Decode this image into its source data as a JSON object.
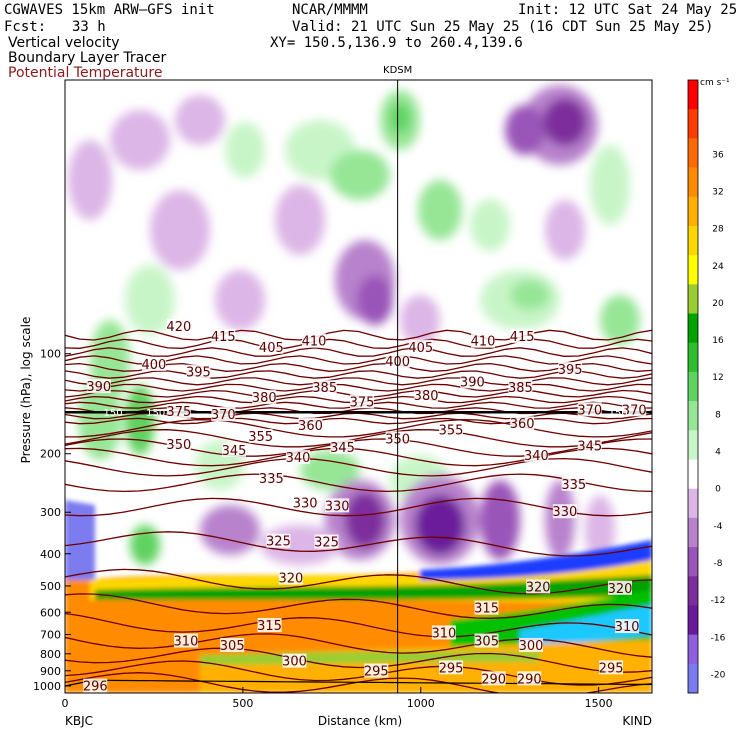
{
  "header": {
    "model": "CGWAVES 15km ARW—GFS init",
    "org": "NCAR/MMMM",
    "init": "Init: 12 UTC Sat 24 May 25",
    "fcst_label": "Fcst:",
    "fcst_value": "33 h",
    "valid": "Valid: 21 UTC Sun 25 May 25 (16 CDT Sun 25 May 25)",
    "field1": "Vertical velocity",
    "field2": "Boundary Layer Tracer",
    "field3": "Potential Temperature",
    "xy": "XY= 150.5,136.9 to 260.4,139.6"
  },
  "colors": {
    "theta": "#6e0000",
    "field3_text": "#8b1a1a"
  },
  "chart_data": {
    "type": "cross-section",
    "title": "",
    "xlabel": "Distance (km)",
    "ylabel": "Pressure (hPa), log scale",
    "x_range": [
      0,
      1650
    ],
    "y_range": [
      1050,
      15
    ],
    "y_scale": "log",
    "x_ticks": [
      {
        "value": 0,
        "label": "0"
      },
      {
        "value": 500,
        "label": "500"
      },
      {
        "value": 1000,
        "label": "1000"
      },
      {
        "value": 1500,
        "label": "1500"
      }
    ],
    "y_ticks": [
      {
        "value": 100,
        "label": "100"
      },
      {
        "value": 200,
        "label": "200"
      },
      {
        "value": 300,
        "label": "300"
      },
      {
        "value": 400,
        "label": "400"
      },
      {
        "value": 500,
        "label": "500"
      },
      {
        "value": 600,
        "label": "600"
      },
      {
        "value": 700,
        "label": "700"
      },
      {
        "value": 800,
        "label": "800"
      },
      {
        "value": 900,
        "label": "900"
      },
      {
        "value": 1000,
        "label": "1000"
      }
    ],
    "station_markers": [
      {
        "name": "KBJC",
        "x": 0,
        "position": "bottom-left"
      },
      {
        "name": "KIND",
        "x": 1650,
        "position": "bottom-right"
      },
      {
        "name": "KDSM",
        "x": 935,
        "position": "top"
      }
    ],
    "colorbar": {
      "units": "cm s⁻¹",
      "levels": [
        -20,
        -16,
        -12,
        -8,
        -4,
        0,
        4,
        8,
        12,
        16,
        20,
        24,
        28,
        32,
        36
      ],
      "labels": [
        "-20",
        "-16",
        "-12",
        "-8",
        "-4",
        "0",
        "4",
        "8",
        "12",
        "16",
        "20",
        "24",
        "28",
        "32",
        "36"
      ],
      "colors": [
        "#7b7bf0",
        "#8f5fe0",
        "#6a1b9a",
        "#7d2d9c",
        "#9a55b8",
        "#b882cc",
        "#dcb6e6",
        "#ffffff",
        "#c8f5c8",
        "#96e696",
        "#5fd25f",
        "#2fbe2f",
        "#00a200",
        "#9acd32",
        "#ffff00",
        "#ffd700",
        "#ffb000",
        "#ff8c00",
        "#ff6a00",
        "#ff3c00",
        "#ff0000"
      ]
    },
    "theta_labels": [
      {
        "text": "420",
        "x": 320,
        "p": 83
      },
      {
        "text": "415",
        "x": 445,
        "p": 89
      },
      {
        "text": "405",
        "x": 580,
        "p": 96
      },
      {
        "text": "410",
        "x": 700,
        "p": 92
      },
      {
        "text": "400",
        "x": 935,
        "p": 106
      },
      {
        "text": "405",
        "x": 1000,
        "p": 96
      },
      {
        "text": "410",
        "x": 1175,
        "p": 92
      },
      {
        "text": "415",
        "x": 1285,
        "p": 89
      },
      {
        "text": "400",
        "x": 250,
        "p": 108
      },
      {
        "text": "395",
        "x": 375,
        "p": 114
      },
      {
        "text": "390",
        "x": 95,
        "p": 126
      },
      {
        "text": "395",
        "x": 1420,
        "p": 112
      },
      {
        "text": "385",
        "x": 730,
        "p": 127
      },
      {
        "text": "390",
        "x": 1145,
        "p": 122
      },
      {
        "text": "385",
        "x": 1280,
        "p": 127
      },
      {
        "text": "380",
        "x": 560,
        "p": 136
      },
      {
        "text": "375",
        "x": 835,
        "p": 140
      },
      {
        "text": "380",
        "x": 1015,
        "p": 134
      },
      {
        "text": "375",
        "x": 320,
        "p": 150
      },
      {
        "text": "370",
        "x": 445,
        "p": 153
      },
      {
        "text": "370",
        "x": 1475,
        "p": 148
      },
      {
        "text": "370",
        "x": 1600,
        "p": 148
      },
      {
        "text": "360",
        "x": 690,
        "p": 165
      },
      {
        "text": "355",
        "x": 1085,
        "p": 170
      },
      {
        "text": "360",
        "x": 1285,
        "p": 163
      },
      {
        "text": "355",
        "x": 550,
        "p": 178
      },
      {
        "text": "350",
        "x": 320,
        "p": 188
      },
      {
        "text": "345",
        "x": 475,
        "p": 196
      },
      {
        "text": "350",
        "x": 935,
        "p": 181
      },
      {
        "text": "345",
        "x": 780,
        "p": 192
      },
      {
        "text": "345",
        "x": 1475,
        "p": 190
      },
      {
        "text": "340",
        "x": 655,
        "p": 206
      },
      {
        "text": "340",
        "x": 1325,
        "p": 203
      },
      {
        "text": "335",
        "x": 580,
        "p": 238
      },
      {
        "text": "335",
        "x": 1430,
        "p": 248
      },
      {
        "text": "330",
        "x": 675,
        "p": 282
      },
      {
        "text": "330",
        "x": 765,
        "p": 288
      },
      {
        "text": "330",
        "x": 1405,
        "p": 300
      },
      {
        "text": "325",
        "x": 600,
        "p": 368
      },
      {
        "text": "325",
        "x": 735,
        "p": 370
      },
      {
        "text": "320",
        "x": 635,
        "p": 475
      },
      {
        "text": "320",
        "x": 1330,
        "p": 505
      },
      {
        "text": "320",
        "x": 1560,
        "p": 510
      },
      {
        "text": "315",
        "x": 1185,
        "p": 585
      },
      {
        "text": "315",
        "x": 575,
        "p": 660
      },
      {
        "text": "310",
        "x": 340,
        "p": 735
      },
      {
        "text": "305",
        "x": 470,
        "p": 758
      },
      {
        "text": "310",
        "x": 1065,
        "p": 695
      },
      {
        "text": "305",
        "x": 1185,
        "p": 735
      },
      {
        "text": "310",
        "x": 1580,
        "p": 665
      },
      {
        "text": "300",
        "x": 1310,
        "p": 758
      },
      {
        "text": "300",
        "x": 645,
        "p": 845
      },
      {
        "text": "295",
        "x": 875,
        "p": 905
      },
      {
        "text": "295",
        "x": 1085,
        "p": 885
      },
      {
        "text": "295",
        "x": 1535,
        "p": 885
      },
      {
        "text": "296",
        "x": 85,
        "p": 1005
      },
      {
        "text": "290",
        "x": 1205,
        "p": 955
      },
      {
        "text": "290",
        "x": 1305,
        "p": 955
      }
    ],
    "tropopause_labels": [
      {
        "text": "150",
        "x": 135,
        "p": 150
      },
      {
        "text": "150",
        "x": 255,
        "p": 150
      },
      {
        "text": "150",
        "x": 1555,
        "p": 150
      }
    ],
    "grid": false,
    "legend": "right colorbar"
  }
}
